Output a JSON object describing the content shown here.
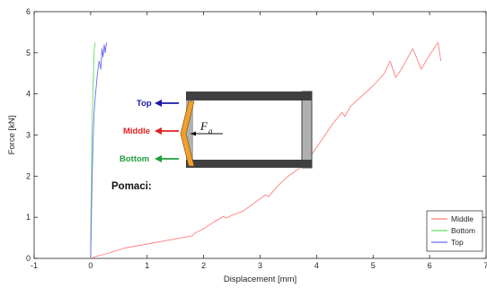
{
  "chart_data": {
    "type": "line",
    "title": "",
    "xlabel": "Displacement [mm]",
    "ylabel": "Force [kN]",
    "xlim": [
      -1,
      7
    ],
    "ylim": [
      0,
      6
    ],
    "xticks": [
      "-1",
      "0",
      "1",
      "2",
      "3",
      "4",
      "5",
      "6",
      "7"
    ],
    "yticks": [
      "0",
      "1",
      "2",
      "3",
      "4",
      "5",
      "6"
    ],
    "grid": false,
    "legend_position": "bottom-right",
    "series": [
      {
        "name": "Middle",
        "color": "#ff7f7f",
        "x": [
          0.0,
          0.1,
          0.3,
          0.6,
          1.0,
          1.4,
          1.8,
          1.85,
          2.0,
          2.2,
          2.35,
          2.4,
          2.5,
          2.7,
          2.9,
          3.1,
          3.15,
          3.3,
          3.5,
          3.7,
          3.8,
          3.95,
          4.1,
          4.2,
          4.3,
          4.45,
          4.5,
          4.6,
          4.8,
          5.0,
          5.2,
          5.3,
          5.35,
          5.4,
          5.5,
          5.7,
          5.75,
          5.85,
          6.0,
          6.15,
          6.2
        ],
        "y": [
          0.0,
          0.05,
          0.12,
          0.25,
          0.35,
          0.45,
          0.55,
          0.62,
          0.72,
          0.9,
          1.02,
          0.98,
          1.05,
          1.15,
          1.35,
          1.55,
          1.5,
          1.75,
          2.0,
          2.2,
          2.3,
          2.6,
          2.9,
          3.1,
          3.3,
          3.55,
          3.45,
          3.7,
          3.95,
          4.2,
          4.5,
          4.8,
          4.6,
          4.4,
          4.6,
          5.1,
          4.95,
          4.6,
          4.95,
          5.25,
          4.8
        ]
      },
      {
        "name": "Bottom",
        "color": "#66e066",
        "x": [
          0.0,
          0.0,
          0.01,
          0.02,
          0.02,
          0.03,
          0.04,
          0.05,
          0.05,
          0.06,
          0.08
        ],
        "y": [
          0.0,
          0.5,
          1.5,
          2.5,
          3.0,
          3.5,
          4.0,
          4.5,
          4.3,
          5.0,
          5.25
        ]
      },
      {
        "name": "Top",
        "color": "#6a6af5",
        "x": [
          0.0,
          0.02,
          0.04,
          0.06,
          0.08,
          0.1,
          0.12,
          0.15,
          0.18,
          0.2,
          0.22,
          0.24,
          0.26,
          0.28
        ],
        "y": [
          0.0,
          1.5,
          2.8,
          3.5,
          3.9,
          4.2,
          4.5,
          4.8,
          4.6,
          5.1,
          4.9,
          5.2,
          5.0,
          5.25
        ]
      }
    ]
  },
  "annotations": {
    "top_label": "Top",
    "middle_label": "Middle",
    "bottom_label": "Bottom",
    "pomaci_label": "Pomaci:",
    "force_symbol": "F",
    "force_subscript": "a",
    "colors": {
      "top": "#1a1aa8",
      "middle": "#e02020",
      "bottom": "#1e9e3a",
      "frame": "#404040",
      "frame_fill": "#b0b0b0",
      "plate": "#f0a030"
    }
  }
}
